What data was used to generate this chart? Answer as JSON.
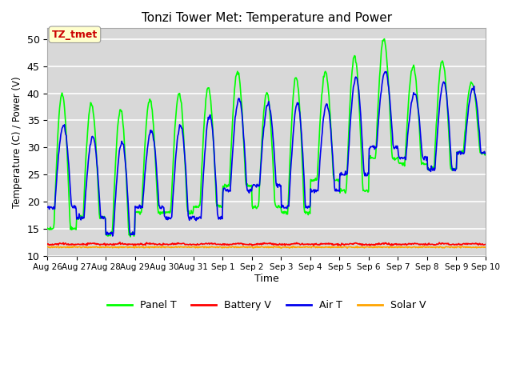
{
  "title": "Tonzi Tower Met: Temperature and Power",
  "xlabel": "Time",
  "ylabel": "Temperature (C) / Power (V)",
  "ylim": [
    10,
    52
  ],
  "annotation_text": "TZ_tmet",
  "annotation_color": "#CC0000",
  "annotation_bg": "#FFFFCC",
  "bg_color": "#D8D8D8",
  "grid_color": "white",
  "line_colors": {
    "panel_t": "#00FF00",
    "battery_v": "#FF0000",
    "air_t": "#0000EE",
    "solar_v": "#FFA500"
  },
  "legend_labels": [
    "Panel T",
    "Battery V",
    "Air T",
    "Solar V"
  ],
  "tick_labels": [
    "Aug 26",
    "Aug 27",
    "Aug 28",
    "Aug 29",
    "Aug 30",
    "Aug 31",
    "Sep 1",
    "Sep 2",
    "Sep 3",
    "Sep 4",
    "Sep 5",
    "Sep 6",
    "Sep 7",
    "Sep 8",
    "Sep 9",
    "Sep 10"
  ],
  "n_days": 15,
  "pts_per_day": 48,
  "peak_heights_panel": [
    40,
    38,
    37,
    39,
    40,
    41,
    44,
    40,
    43,
    44,
    47,
    50,
    45,
    46,
    42
  ],
  "night_lows_panel": [
    15,
    17,
    14,
    18,
    18,
    19,
    23,
    19,
    18,
    24,
    22,
    28,
    27,
    26,
    29
  ],
  "peak_heights_air": [
    34,
    32,
    31,
    33,
    34,
    36,
    39,
    38,
    38,
    38,
    43,
    44,
    40,
    42,
    41
  ],
  "night_lows_air": [
    19,
    17,
    14,
    19,
    17,
    17,
    22,
    23,
    19,
    22,
    25,
    30,
    28,
    26,
    29
  ],
  "battery_v_base": 12.1,
  "solar_v_base": 11.6
}
